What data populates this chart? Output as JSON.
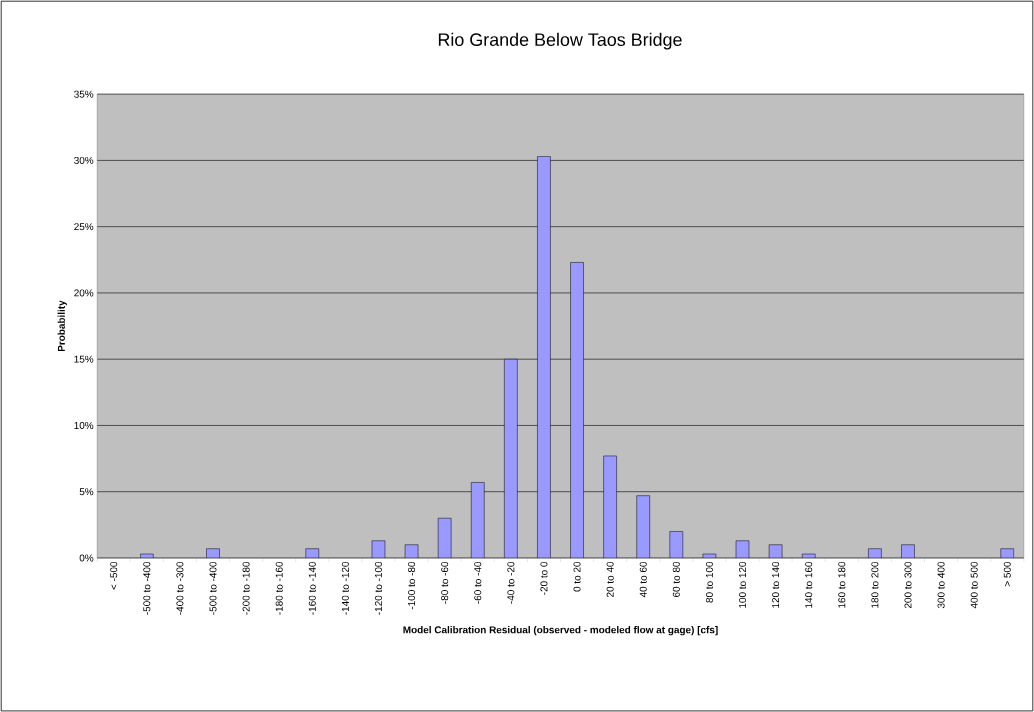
{
  "chart_data": {
    "type": "bar",
    "title": "Rio Grande Below Taos Bridge",
    "xlabel": "Model Calibration Residual (observed - modeled flow at gage)  [cfs]",
    "ylabel": "Probability",
    "categories": [
      "< -500",
      "-500 to -400",
      "-400 to -300",
      "-500 to -400",
      "-200 to -180",
      "-180 to -160",
      "-160 to -140",
      "-140 to -120",
      "-120 to -100",
      "-100 to -80",
      "-80 to -60",
      "-60 to -40",
      "-40 to -20",
      "-20 to 0",
      "0 to 20",
      "20 to 40",
      "40 to 60",
      "60 to 80",
      "80 to 100",
      "100 to 120",
      "120 to 140",
      "140 to 160",
      "160 to 180",
      "180 to 200",
      "200 to 300",
      "300 to 400",
      "400 to 500",
      "> 500"
    ],
    "values": [
      0,
      0.3,
      0,
      0.7,
      0,
      0,
      0.7,
      0,
      1.3,
      1.0,
      3.0,
      5.7,
      15.0,
      30.3,
      22.3,
      7.7,
      4.7,
      2.0,
      0.3,
      1.3,
      1.0,
      0.3,
      0,
      0.7,
      1.0,
      0,
      0,
      0.7
    ],
    "color": "#9999ff",
    "ylim": [
      0,
      35
    ],
    "yticks": [
      {
        "value": 0,
        "label": "0%"
      },
      {
        "value": 5,
        "label": "5%"
      },
      {
        "value": 10,
        "label": "10%"
      },
      {
        "value": 15,
        "label": "15%"
      },
      {
        "value": 20,
        "label": "20%"
      },
      {
        "value": 25,
        "label": "25%"
      },
      {
        "value": 30,
        "label": "30%"
      },
      {
        "value": 35,
        "label": "35%"
      }
    ],
    "grid": "y"
  }
}
